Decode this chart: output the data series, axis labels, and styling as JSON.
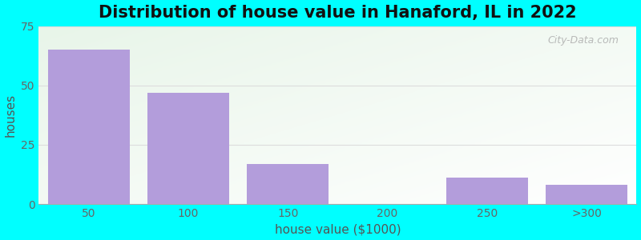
{
  "title": "Distribution of house value in Hanaford, IL in 2022",
  "xlabel": "house value ($1000)",
  "ylabel": "houses",
  "categories": [
    "50",
    "100",
    "150",
    "200",
    "250",
    ">300"
  ],
  "values": [
    65,
    47,
    17,
    0,
    11,
    8
  ],
  "bar_color": "#b39ddb",
  "bar_edgecolor": "none",
  "ylim": [
    0,
    75
  ],
  "yticks": [
    0,
    25,
    50,
    75
  ],
  "background_color": "#00ffff",
  "gradient_color_topleft": "#e8f5e9",
  "gradient_color_topright": "#ffffff",
  "gradient_color_bottomleft": "#d0ead0",
  "title_fontsize": 15,
  "axis_label_fontsize": 11,
  "tick_fontsize": 10,
  "watermark_text": "City-Data.com",
  "grid_color": "#dddddd",
  "tick_color": "#666666",
  "label_color": "#555555"
}
